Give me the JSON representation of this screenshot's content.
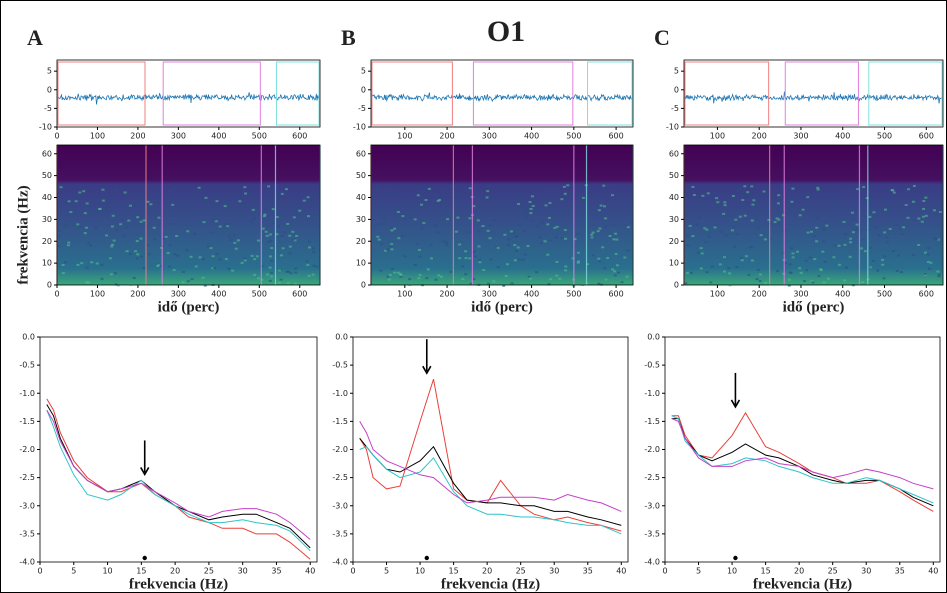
{
  "figure_title": "O1",
  "chart_data": [
    {
      "type": "signal",
      "label": "A",
      "xlim": [
        0,
        650
      ],
      "xticks": [
        0,
        100,
        200,
        300,
        400,
        500,
        600
      ],
      "ylim": [
        -10,
        8
      ],
      "yticks": [
        -10,
        -5,
        0,
        5
      ],
      "color": "#1f77b4",
      "segments": [
        {
          "color": "#f08080",
          "range": [
            0,
            220
          ]
        },
        {
          "color": "#e080e0",
          "range": [
            260,
            505
          ]
        },
        {
          "color": "#80e0e0",
          "range": [
            540,
            650
          ]
        }
      ]
    },
    {
      "type": "spectrogram",
      "ylabel": "frekvencia (Hz)",
      "xlabel": "idő (perc)",
      "xlim": [
        0,
        650
      ],
      "xticks": [
        0,
        100,
        200,
        300,
        400,
        500,
        600
      ],
      "ylim": [
        0,
        64
      ],
      "yticks": [
        0,
        10,
        20,
        30,
        40,
        50,
        60
      ]
    },
    {
      "type": "line",
      "xlabel": "frekvencia (Hz)",
      "xlim": [
        0,
        41
      ],
      "xticks": [
        0,
        5,
        10,
        15,
        20,
        25,
        30,
        35,
        40
      ],
      "ylim": [
        -4,
        0
      ],
      "yticks": [
        {
          "value": -4,
          "label": "-4.0"
        },
        {
          "value": -3.5,
          "label": "-3.5"
        },
        {
          "value": -3,
          "label": "-3.0"
        },
        {
          "value": -2.5,
          "label": "-2.5"
        },
        {
          "value": -2,
          "label": "-2.0"
        },
        {
          "value": -1.5,
          "label": "-1.5"
        },
        {
          "value": -1,
          "label": "-1.0"
        },
        {
          "value": -0.5,
          "label": "-0.5"
        },
        {
          "value": 0,
          "label": "0.0"
        }
      ],
      "peak_x": 15.5,
      "x": [
        1,
        2,
        3,
        5,
        7,
        10,
        12,
        15,
        17,
        20,
        22,
        25,
        27,
        30,
        32,
        35,
        37,
        40
      ],
      "series": [
        {
          "color": "#e8413b",
          "values": [
            -1.1,
            -1.3,
            -1.7,
            -2.2,
            -2.5,
            -2.75,
            -2.75,
            -2.6,
            -2.8,
            -3.0,
            -3.2,
            -3.3,
            -3.4,
            -3.4,
            -3.5,
            -3.5,
            -3.65,
            -3.95
          ]
        },
        {
          "color": "#000000",
          "values": [
            -1.2,
            -1.4,
            -1.8,
            -2.3,
            -2.55,
            -2.75,
            -2.7,
            -2.55,
            -2.75,
            -3.0,
            -3.1,
            -3.25,
            -3.2,
            -3.15,
            -3.15,
            -3.3,
            -3.4,
            -3.75
          ]
        },
        {
          "color": "#2ec4c8",
          "values": [
            -1.3,
            -1.6,
            -1.95,
            -2.45,
            -2.8,
            -2.9,
            -2.8,
            -2.55,
            -2.8,
            -3.0,
            -3.15,
            -3.3,
            -3.3,
            -3.25,
            -3.3,
            -3.35,
            -3.45,
            -3.8
          ]
        },
        {
          "color": "#c83fc8",
          "values": [
            -1.3,
            -1.5,
            -1.85,
            -2.3,
            -2.55,
            -2.75,
            -2.7,
            -2.6,
            -2.75,
            -2.95,
            -3.1,
            -3.2,
            -3.1,
            -3.05,
            -3.05,
            -3.15,
            -3.3,
            -3.6
          ]
        }
      ]
    },
    {
      "type": "signal",
      "label": "B",
      "xlim": [
        20,
        640
      ],
      "xticks": [
        100,
        200,
        300,
        400,
        500,
        600
      ],
      "ylim": [
        -10,
        8
      ],
      "yticks": [
        -10,
        -5,
        0,
        5
      ],
      "color": "#1f77b4",
      "segments": [
        {
          "color": "#f08080",
          "range": [
            20,
            215
          ]
        },
        {
          "color": "#e080e0",
          "range": [
            260,
            500
          ]
        },
        {
          "color": "#80e0e0",
          "range": [
            530,
            640
          ]
        }
      ]
    },
    {
      "type": "spectrogram",
      "xlabel": "idő (perc)",
      "xlim": [
        20,
        640
      ],
      "xticks": [
        100,
        200,
        300,
        400,
        500,
        600
      ],
      "ylim": [
        0,
        64
      ],
      "yticks": [
        0,
        10,
        20,
        30,
        40,
        50,
        60
      ]
    },
    {
      "type": "line",
      "xlabel": "frekvencia (Hz)",
      "xlim": [
        0,
        41
      ],
      "xticks": [
        0,
        5,
        10,
        15,
        20,
        25,
        30,
        35,
        40
      ],
      "ylim": [
        -4,
        0
      ],
      "yticks": [
        {
          "value": -4,
          "label": "-4.0"
        },
        {
          "value": -3.5,
          "label": "-3.5"
        },
        {
          "value": -3,
          "label": "-3.0"
        },
        {
          "value": -2.5,
          "label": "-2.5"
        },
        {
          "value": -2,
          "label": "-2.0"
        },
        {
          "value": -1.5,
          "label": "-1.5"
        },
        {
          "value": -1,
          "label": "-1.0"
        },
        {
          "value": -0.5,
          "label": "-0.5"
        },
        {
          "value": 0,
          "label": "0.0"
        }
      ],
      "peak_x": 11,
      "x": [
        1,
        2,
        3,
        5,
        7,
        10,
        12,
        15,
        17,
        20,
        22,
        25,
        27,
        30,
        32,
        35,
        37,
        40
      ],
      "series": [
        {
          "color": "#e8413b",
          "values": [
            -1.8,
            -2.0,
            -2.5,
            -2.7,
            -2.65,
            -1.5,
            -0.75,
            -2.7,
            -2.9,
            -2.95,
            -2.55,
            -3.0,
            -3.15,
            -3.25,
            -3.2,
            -3.3,
            -3.35,
            -3.45
          ]
        },
        {
          "color": "#000000",
          "values": [
            -1.8,
            -1.95,
            -2.1,
            -2.35,
            -2.4,
            -2.2,
            -1.95,
            -2.6,
            -2.9,
            -2.95,
            -2.95,
            -3.0,
            -3.0,
            -3.1,
            -3.1,
            -3.2,
            -3.25,
            -3.35
          ]
        },
        {
          "color": "#2ec4c8",
          "values": [
            -2.0,
            -1.95,
            -2.1,
            -2.35,
            -2.5,
            -2.4,
            -2.15,
            -2.75,
            -3.0,
            -3.15,
            -3.15,
            -3.2,
            -3.2,
            -3.25,
            -3.3,
            -3.35,
            -3.35,
            -3.5
          ]
        },
        {
          "color": "#c83fc8",
          "values": [
            -1.5,
            -1.7,
            -2.0,
            -2.2,
            -2.3,
            -2.45,
            -2.5,
            -2.8,
            -2.95,
            -2.9,
            -2.85,
            -2.85,
            -2.85,
            -2.9,
            -2.8,
            -2.9,
            -2.95,
            -3.1
          ]
        }
      ]
    },
    {
      "type": "signal",
      "label": "C",
      "xlim": [
        20,
        640
      ],
      "xticks": [
        100,
        200,
        300,
        400,
        500,
        600
      ],
      "ylim": [
        -10,
        8
      ],
      "yticks": [
        -10,
        -5,
        0,
        5
      ],
      "color": "#1f77b4",
      "segments": [
        {
          "color": "#f08080",
          "range": [
            20,
            225
          ]
        },
        {
          "color": "#e080e0",
          "range": [
            260,
            440
          ]
        },
        {
          "color": "#80e0e0",
          "range": [
            460,
            640
          ]
        }
      ]
    },
    {
      "type": "spectrogram",
      "xlabel": "idő (perc)",
      "xlim": [
        20,
        640
      ],
      "xticks": [
        100,
        200,
        300,
        400,
        500,
        600
      ],
      "ylim": [
        0,
        64
      ],
      "yticks": [
        0,
        10,
        20,
        30,
        40,
        50,
        60
      ]
    },
    {
      "type": "line",
      "xlabel": "frekvencia (Hz)",
      "xlim": [
        0,
        41
      ],
      "xticks": [
        0,
        5,
        10,
        15,
        20,
        25,
        30,
        35,
        40
      ],
      "ylim": [
        -4,
        0
      ],
      "yticks": [
        {
          "value": -4,
          "label": "-4.0"
        },
        {
          "value": -3.5,
          "label": "-3.5"
        },
        {
          "value": -3,
          "label": "-3.0"
        },
        {
          "value": -2.5,
          "label": "-2.5"
        },
        {
          "value": -2,
          "label": "-2.0"
        },
        {
          "value": -1.5,
          "label": "-1.5"
        },
        {
          "value": -1,
          "label": "-1.0"
        },
        {
          "value": -0.5,
          "label": "-0.5"
        },
        {
          "value": 0,
          "label": "0.0"
        }
      ],
      "peak_x": 10.5,
      "x": [
        1,
        2,
        3,
        5,
        7,
        10,
        12,
        15,
        17,
        20,
        22,
        25,
        27,
        30,
        32,
        35,
        37,
        40
      ],
      "series": [
        {
          "color": "#e8413b",
          "values": [
            -1.4,
            -1.4,
            -1.75,
            -2.1,
            -2.15,
            -1.75,
            -1.35,
            -1.95,
            -2.05,
            -2.25,
            -2.4,
            -2.5,
            -2.6,
            -2.6,
            -2.55,
            -2.75,
            -2.9,
            -3.1
          ]
        },
        {
          "color": "#000000",
          "values": [
            -1.45,
            -1.45,
            -1.8,
            -2.1,
            -2.2,
            -2.05,
            -1.9,
            -2.1,
            -2.15,
            -2.3,
            -2.45,
            -2.55,
            -2.6,
            -2.55,
            -2.55,
            -2.7,
            -2.85,
            -3.0
          ]
        },
        {
          "color": "#2ec4c8",
          "values": [
            -1.4,
            -1.45,
            -1.85,
            -2.1,
            -2.3,
            -2.25,
            -2.15,
            -2.2,
            -2.3,
            -2.4,
            -2.5,
            -2.6,
            -2.6,
            -2.5,
            -2.55,
            -2.7,
            -2.8,
            -2.95
          ]
        },
        {
          "color": "#c83fc8",
          "values": [
            -1.45,
            -1.5,
            -1.8,
            -2.15,
            -2.3,
            -2.3,
            -2.2,
            -2.15,
            -2.25,
            -2.3,
            -2.4,
            -2.5,
            -2.45,
            -2.35,
            -2.4,
            -2.5,
            -2.6,
            -2.7
          ]
        }
      ]
    }
  ]
}
